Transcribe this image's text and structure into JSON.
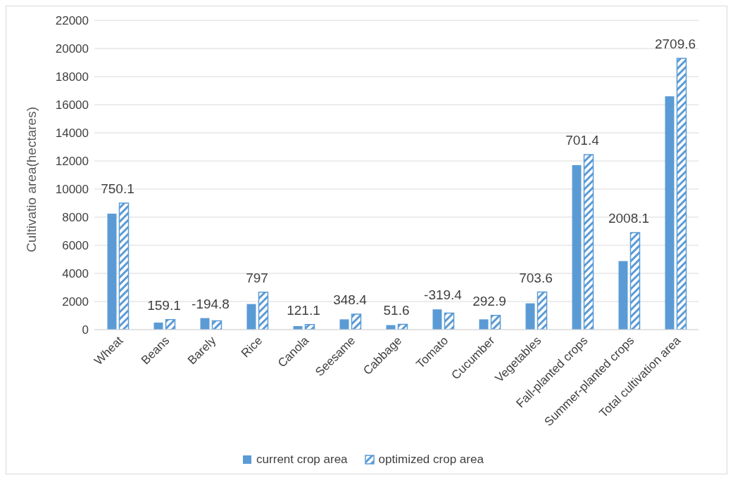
{
  "chart_data": {
    "type": "bar",
    "ylabel": "Cultivatio area(hectares)",
    "categories": [
      "Wheat",
      "Beans",
      "Barely",
      "Rice",
      "Canola",
      "Seesame",
      "Cabbage",
      "Tomato",
      "Cucumber",
      "Vegetables",
      "Fall-planted crops",
      "Summer-planted crops",
      "Total cultivation area"
    ],
    "series": [
      {
        "name": "current crop area",
        "color": "#5b9bd5",
        "values": [
          8250,
          500,
          820,
          1820,
          250,
          730,
          320,
          1440,
          730,
          1870,
          11700,
          4880,
          16600
        ]
      },
      {
        "name": "optimized crop area",
        "color": "#5b9bd5",
        "values": [
          9000,
          710,
          630,
          2660,
          360,
          1100,
          370,
          1180,
          1010,
          2670,
          12450,
          6900,
          19300
        ]
      }
    ],
    "ylim": [
      0,
      22000
    ],
    "yticks": [
      0,
      2000,
      4000,
      6000,
      8000,
      10000,
      12000,
      14000,
      16000,
      18000,
      20000,
      22000
    ],
    "grid": "y",
    "legend": "bottom",
    "annotations": [
      {
        "text": "750.1",
        "x": "Wheat",
        "y": 9000
      },
      {
        "text": "159.1",
        "x": "Beans",
        "y": 710
      },
      {
        "text": "-194.8",
        "x": "Barely",
        "y": 630
      },
      {
        "text": "797",
        "x": "Rice",
        "y": 2660
      },
      {
        "text": "121.1",
        "x": "Canola",
        "y": 360
      },
      {
        "text": "348.4",
        "x": "Seesame",
        "y": 1100
      },
      {
        "text": "51.6",
        "x": "Cabbage",
        "y": 370
      },
      {
        "text": "-319.4",
        "x": "Tomato",
        "y": 1180
      },
      {
        "text": "292.9",
        "x": "Cucumber",
        "y": 1010
      },
      {
        "text": "703.6",
        "x": "Vegetables",
        "y": 2670
      },
      {
        "text": "701.4",
        "x": "Fall-planted crops",
        "y": 12450
      },
      {
        "text": "2008.1",
        "x": "Summer-planted crops",
        "y": 6900
      },
      {
        "text": "2709.6",
        "x": "Total cultivation area",
        "y": 19300
      }
    ]
  }
}
